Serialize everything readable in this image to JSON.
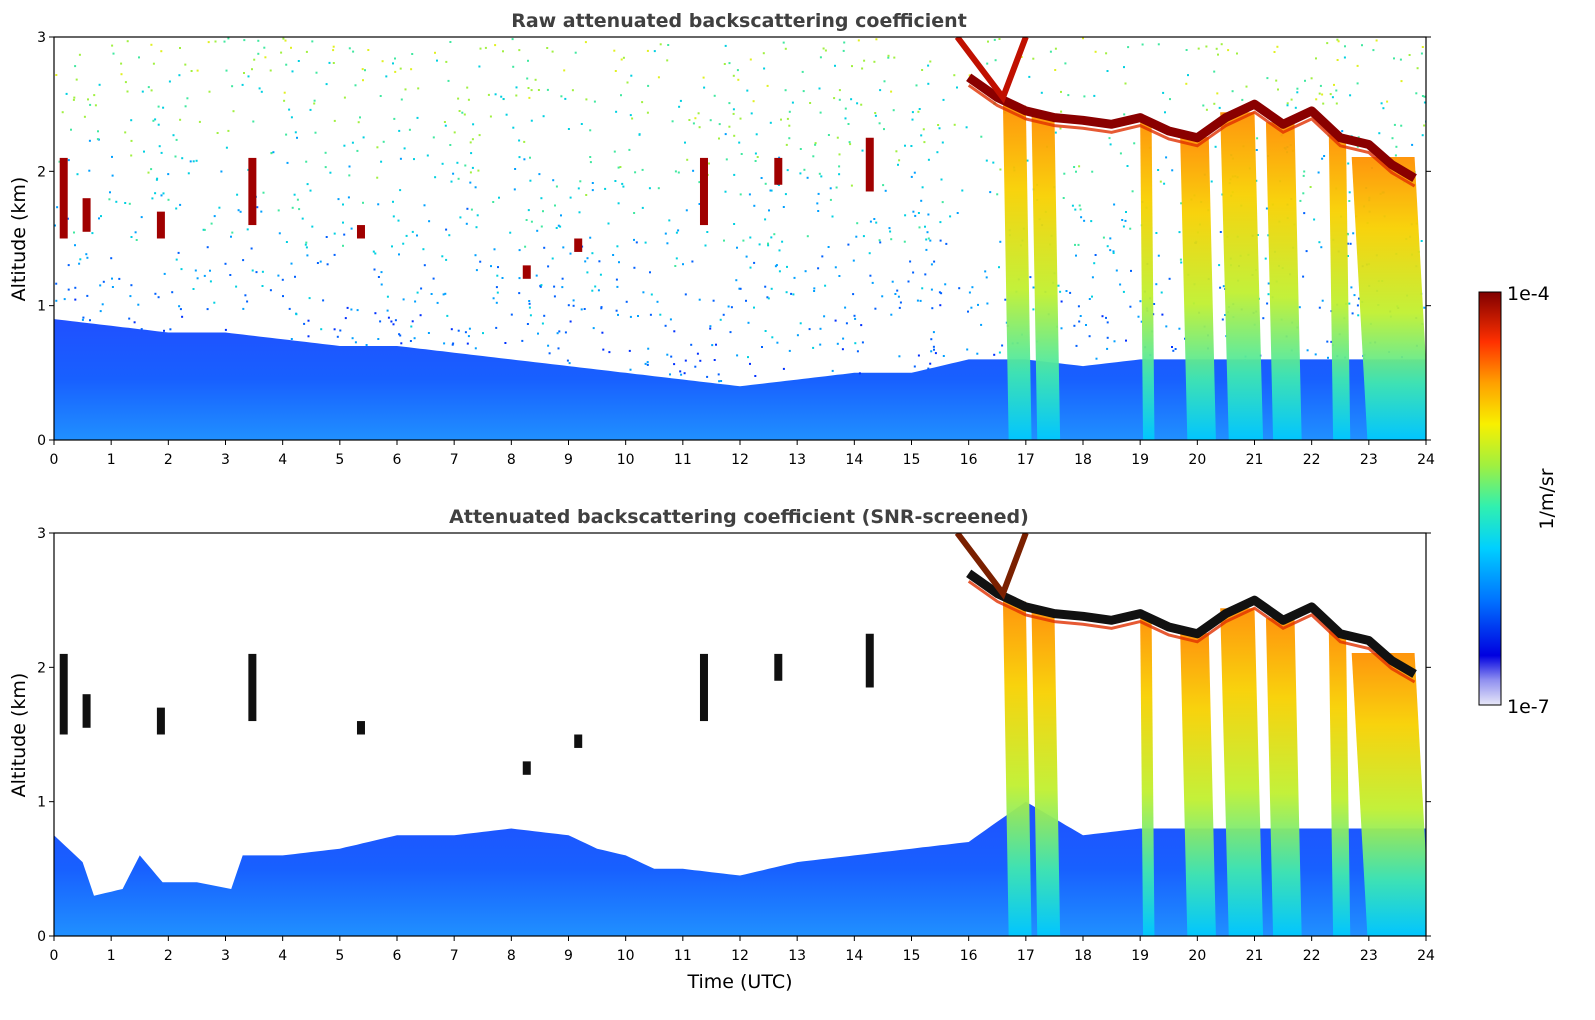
{
  "chart_data": [
    {
      "type": "heatmap",
      "title": "Raw attenuated backscattering coefficient",
      "xlabel": "",
      "ylabel": "Altitude (km)",
      "xlim": [
        0,
        24
      ],
      "ylim": [
        0,
        3
      ],
      "xticks": [
        "0",
        "1",
        "2",
        "3",
        "4",
        "5",
        "6",
        "7",
        "8",
        "9",
        "10",
        "11",
        "12",
        "13",
        "14",
        "15",
        "16",
        "17",
        "18",
        "19",
        "20",
        "21",
        "22",
        "23",
        "24"
      ],
      "yticks": [
        "0",
        "1",
        "2",
        "3"
      ],
      "boundary_layer_top_km": [
        [
          0,
          0.9
        ],
        [
          1,
          0.85
        ],
        [
          2,
          0.8
        ],
        [
          3,
          0.8
        ],
        [
          4,
          0.75
        ],
        [
          5,
          0.7
        ],
        [
          6,
          0.7
        ],
        [
          7,
          0.65
        ],
        [
          8,
          0.6
        ],
        [
          9,
          0.55
        ],
        [
          10,
          0.5
        ],
        [
          11,
          0.45
        ],
        [
          12,
          0.4
        ],
        [
          13,
          0.45
        ],
        [
          14,
          0.5
        ],
        [
          15,
          0.5
        ],
        [
          16,
          0.6
        ],
        [
          17,
          0.6
        ],
        [
          18,
          0.55
        ],
        [
          19,
          0.6
        ],
        [
          20,
          0.6
        ],
        [
          21,
          0.6
        ],
        [
          22,
          0.6
        ],
        [
          23,
          0.6
        ],
        [
          24,
          0.6
        ]
      ],
      "cloud_base_km": [
        [
          16.0,
          2.7
        ],
        [
          16.5,
          2.55
        ],
        [
          17.0,
          2.45
        ],
        [
          17.5,
          2.4
        ],
        [
          18.0,
          2.38
        ],
        [
          18.5,
          2.35
        ],
        [
          19.0,
          2.4
        ],
        [
          19.5,
          2.3
        ],
        [
          20.0,
          2.25
        ],
        [
          20.5,
          2.4
        ],
        [
          21.0,
          2.5
        ],
        [
          21.5,
          2.35
        ],
        [
          22.0,
          2.45
        ],
        [
          22.5,
          2.25
        ],
        [
          23.0,
          2.2
        ],
        [
          23.4,
          2.05
        ],
        [
          23.8,
          1.95
        ]
      ],
      "precipitation_bands_hours": [
        [
          16.6,
          17.0
        ],
        [
          17.1,
          17.5
        ],
        [
          19.0,
          19.2
        ],
        [
          19.7,
          20.2
        ],
        [
          20.4,
          21.0
        ],
        [
          21.2,
          21.7
        ],
        [
          22.3,
          22.6
        ],
        [
          22.7,
          23.8
        ]
      ],
      "isolated_cloud_patches": [
        [
          0.1,
          1.5,
          2.1
        ],
        [
          0.5,
          1.55,
          1.8
        ],
        [
          1.8,
          1.5,
          1.7
        ],
        [
          3.4,
          1.6,
          2.1
        ],
        [
          5.3,
          1.5,
          1.6
        ],
        [
          9.1,
          1.4,
          1.5
        ],
        [
          11.3,
          1.6,
          2.1
        ],
        [
          14.2,
          1.85,
          2.25
        ],
        [
          8.2,
          1.2,
          1.3
        ],
        [
          12.6,
          1.9,
          2.1
        ]
      ]
    },
    {
      "type": "heatmap",
      "title": "Attenuated backscattering coefficient (SNR-screened)",
      "xlabel": "Time (UTC)",
      "ylabel": "Altitude (km)",
      "xlim": [
        0,
        24
      ],
      "ylim": [
        0,
        3
      ],
      "xticks": [
        "0",
        "1",
        "2",
        "3",
        "4",
        "5",
        "6",
        "7",
        "8",
        "9",
        "10",
        "11",
        "12",
        "13",
        "14",
        "15",
        "16",
        "17",
        "18",
        "19",
        "20",
        "21",
        "22",
        "23",
        "24"
      ],
      "yticks": [
        "0",
        "1",
        "2",
        "3"
      ],
      "boundary_layer_top_km": [
        [
          0,
          0.75
        ],
        [
          0.5,
          0.55
        ],
        [
          0.7,
          0.3
        ],
        [
          1.2,
          0.35
        ],
        [
          1.5,
          0.6
        ],
        [
          1.9,
          0.4
        ],
        [
          2.5,
          0.4
        ],
        [
          3.1,
          0.35
        ],
        [
          3.3,
          0.6
        ],
        [
          4,
          0.6
        ],
        [
          5,
          0.65
        ],
        [
          6,
          0.75
        ],
        [
          7,
          0.75
        ],
        [
          8,
          0.8
        ],
        [
          9,
          0.75
        ],
        [
          9.5,
          0.65
        ],
        [
          10,
          0.6
        ],
        [
          10.5,
          0.5
        ],
        [
          11,
          0.5
        ],
        [
          12,
          0.45
        ],
        [
          13,
          0.55
        ],
        [
          14,
          0.6
        ],
        [
          15,
          0.65
        ],
        [
          16,
          0.7
        ],
        [
          16.5,
          0.85
        ],
        [
          17,
          1.0
        ],
        [
          18,
          0.75
        ],
        [
          19,
          0.8
        ],
        [
          24,
          0.8
        ]
      ],
      "cloud_base_km": [
        [
          16.0,
          2.7
        ],
        [
          16.5,
          2.55
        ],
        [
          17.0,
          2.45
        ],
        [
          17.5,
          2.4
        ],
        [
          18.0,
          2.38
        ],
        [
          18.5,
          2.35
        ],
        [
          19.0,
          2.4
        ],
        [
          19.5,
          2.3
        ],
        [
          20.0,
          2.25
        ],
        [
          20.5,
          2.4
        ],
        [
          21.0,
          2.5
        ],
        [
          21.5,
          2.35
        ],
        [
          22.0,
          2.45
        ],
        [
          22.5,
          2.25
        ],
        [
          23.0,
          2.2
        ],
        [
          23.4,
          2.05
        ],
        [
          23.8,
          1.95
        ]
      ],
      "precipitation_bands_hours": [
        [
          16.6,
          17.0
        ],
        [
          17.1,
          17.5
        ],
        [
          19.0,
          19.2
        ],
        [
          19.7,
          20.2
        ],
        [
          20.4,
          21.0
        ],
        [
          21.2,
          21.7
        ],
        [
          22.3,
          22.6
        ],
        [
          22.7,
          23.8
        ]
      ]
    }
  ],
  "colorbar": {
    "label": "1/m/sr",
    "max_label": "1e-4",
    "min_label": "1e-7",
    "colors": [
      "#e8e8f8",
      "#b8b8f0",
      "#8080ff",
      "#0000e0",
      "#0040ff",
      "#0080ff",
      "#00b8ff",
      "#00e0e0",
      "#40f0a0",
      "#a0f040",
      "#f0f000",
      "#ffc000",
      "#ff8000",
      "#ff3000",
      "#d00000",
      "#800000"
    ]
  }
}
